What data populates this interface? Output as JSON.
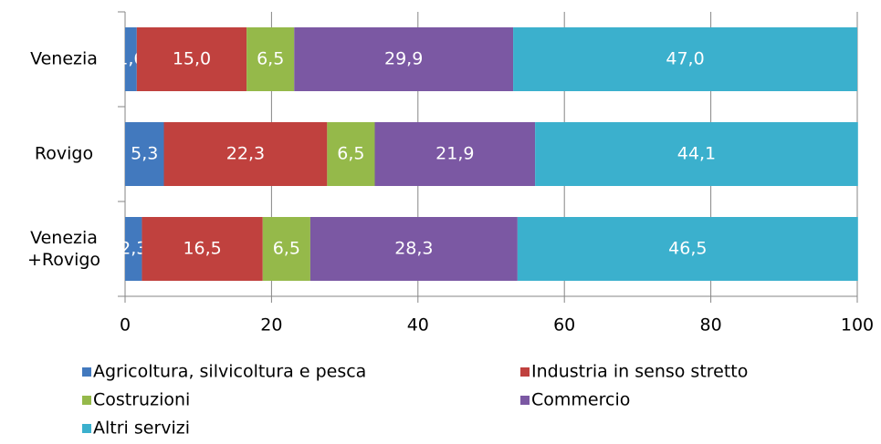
{
  "chart_data": {
    "type": "stacked-barh",
    "categories": [
      "Venezia",
      "Rovigo",
      "Venezia\n+Rovigo"
    ],
    "series": [
      {
        "name": "Agricoltura, silvicoltura e pesca",
        "color": "#4279be",
        "values": [
          1.6,
          5.3,
          2.3
        ],
        "value_labels": [
          "1,6",
          "5,3",
          "2,3"
        ]
      },
      {
        "name": "Industria in senso stretto",
        "color": "#c0413e",
        "values": [
          15.0,
          22.3,
          16.5
        ],
        "value_labels": [
          "15,0",
          "22,3",
          "16,5"
        ]
      },
      {
        "name": "Costruzioni",
        "color": "#95b94a",
        "values": [
          6.5,
          6.5,
          6.5
        ],
        "value_labels": [
          "6,5",
          "6,5",
          "6,5"
        ]
      },
      {
        "name": "Commercio",
        "color": "#7b58a3",
        "values": [
          29.9,
          21.9,
          28.3
        ],
        "value_labels": [
          "29,9",
          "21,9",
          "28,3"
        ]
      },
      {
        "name": "Altri servizi",
        "color": "#3bb0cd",
        "values": [
          47.0,
          44.1,
          46.5
        ],
        "value_labels": [
          "47,0",
          "44,1",
          "46,5"
        ]
      }
    ],
    "xlim": [
      0,
      100
    ],
    "xticks": [
      0,
      20,
      40,
      60,
      80,
      100
    ],
    "grid": true
  }
}
